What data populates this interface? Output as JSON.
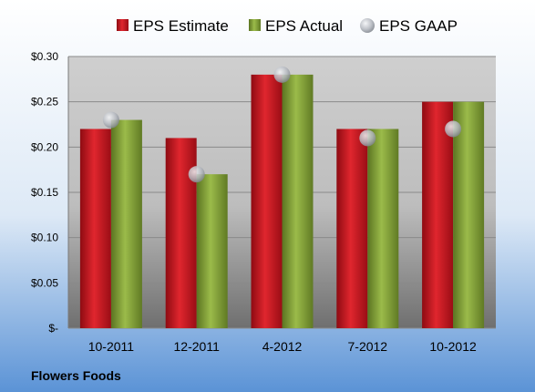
{
  "chart_data": {
    "type": "bar",
    "title": "",
    "categories": [
      "10-2011",
      "12-2011",
      "4-2012",
      "7-2012",
      "10-2012"
    ],
    "series": [
      {
        "name": "EPS Estimate",
        "kind": "bar",
        "color": "#c0141d",
        "values": [
          0.22,
          0.21,
          0.28,
          0.22,
          0.25
        ]
      },
      {
        "name": "EPS Actual",
        "kind": "bar",
        "color": "#7a9a2e",
        "values": [
          0.23,
          0.17,
          0.28,
          0.22,
          0.25
        ]
      },
      {
        "name": "EPS GAAP",
        "kind": "marker",
        "color": "#b5b9c0",
        "values": [
          0.23,
          0.17,
          0.28,
          0.21,
          0.22
        ]
      }
    ],
    "ylim": [
      0,
      0.3
    ],
    "yticks": [
      0,
      0.05,
      0.1,
      0.15,
      0.2,
      0.25,
      0.3
    ],
    "ytick_labels": [
      "$-",
      "$0.05",
      "$0.10",
      "$0.15",
      "$0.20",
      "$0.25",
      "$0.30"
    ],
    "grid": true,
    "legend_position": "top",
    "footer": "Flowers Foods"
  }
}
